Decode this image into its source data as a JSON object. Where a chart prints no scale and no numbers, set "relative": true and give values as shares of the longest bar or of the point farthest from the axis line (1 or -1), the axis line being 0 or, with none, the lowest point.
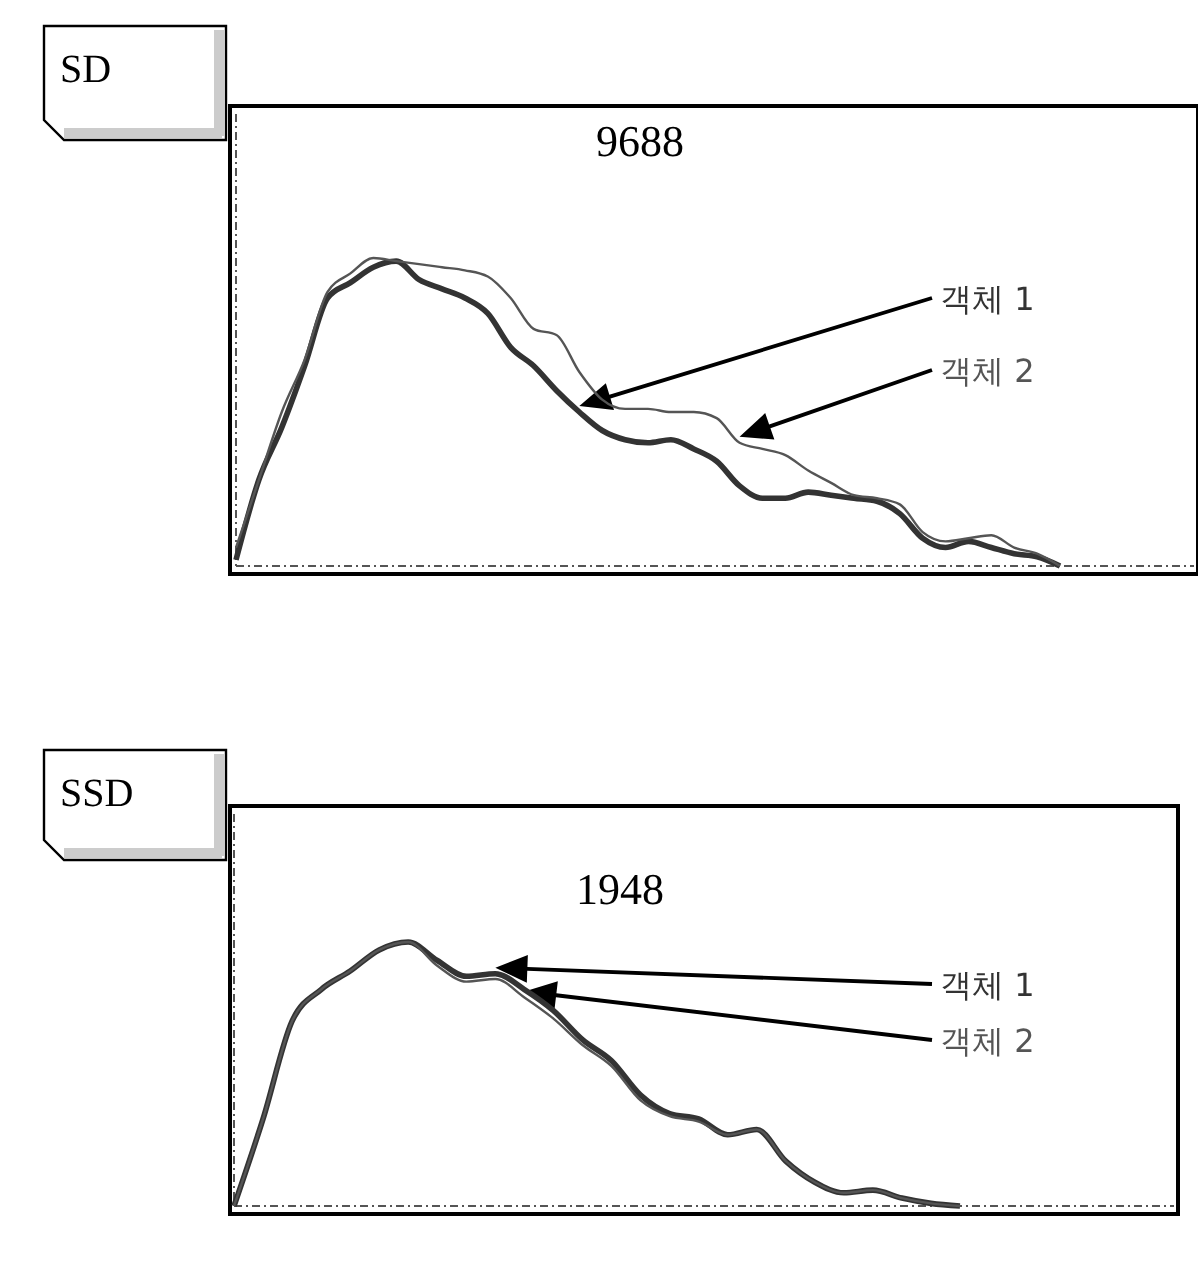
{
  "chart_data": [
    {
      "type": "line",
      "title": "SD",
      "annotations": [
        "9688"
      ],
      "relative": true,
      "line_style": "solid",
      "categories": [
        null,
        null,
        null,
        null,
        null,
        null,
        null,
        null,
        null,
        null,
        null,
        null,
        null,
        null,
        null,
        null,
        null,
        null,
        null,
        null,
        null,
        null,
        null,
        null,
        null,
        null,
        null,
        null,
        null,
        null,
        null,
        null,
        null,
        null,
        null,
        null,
        null
      ],
      "series": [
        {
          "name": "객체 1",
          "color": "#333333",
          "values": [
            0.02,
            0.28,
            0.45,
            0.65,
            0.87,
            0.92,
            0.97,
            0.99,
            0.93,
            0.9,
            0.87,
            0.82,
            0.71,
            0.65,
            0.57,
            0.5,
            0.44,
            0.41,
            0.4,
            0.41,
            0.38,
            0.34,
            0.26,
            0.22,
            0.22,
            0.24,
            0.23,
            0.22,
            0.21,
            0.17,
            0.09,
            0.06,
            0.08,
            0.06,
            0.04,
            0.03,
            0
          ]
        },
        {
          "name": "객체 2",
          "color": "#555555",
          "values": [
            0.06,
            0.28,
            0.5,
            0.67,
            0.89,
            0.95,
            1,
            0.99,
            0.98,
            0.97,
            0.96,
            0.94,
            0.87,
            0.77,
            0.75,
            0.63,
            0.54,
            0.51,
            0.51,
            0.5,
            0.5,
            0.48,
            0.4,
            0.38,
            0.36,
            0.31,
            0.27,
            0.23,
            0.22,
            0.2,
            0.11,
            0.08,
            0.09,
            0.1,
            0.06,
            0.04,
            0
          ]
        }
      ]
    },
    {
      "type": "line",
      "title": "SSD",
      "annotations": [
        "1948"
      ],
      "relative": true,
      "line_style": "solid",
      "categories": [
        null,
        null,
        null,
        null,
        null,
        null,
        null,
        null,
        null,
        null,
        null,
        null,
        null,
        null,
        null,
        null,
        null,
        null,
        null,
        null,
        null,
        null,
        null,
        null,
        null,
        null
      ],
      "series": [
        {
          "name": "객체 1",
          "color": "#333333",
          "values": [
            0,
            0.33,
            0.7,
            0.82,
            0.89,
            0.97,
            1,
            0.93,
            0.87,
            0.88,
            0.82,
            0.74,
            0.63,
            0.55,
            0.42,
            0.35,
            0.33,
            0.27,
            0.29,
            0.17,
            0.09,
            0.05,
            0.06,
            0.03,
            0.01,
            0
          ]
        },
        {
          "name": "객체 2",
          "color": "#555555",
          "values": [
            0,
            0.33,
            0.7,
            0.82,
            0.89,
            0.97,
            1,
            0.91,
            0.85,
            0.86,
            0.79,
            0.71,
            0.61,
            0.53,
            0.4,
            0.34,
            0.32,
            0.27,
            0.29,
            0.17,
            0.09,
            0.05,
            0.06,
            0.03,
            0.01,
            0
          ]
        }
      ]
    }
  ]
}
